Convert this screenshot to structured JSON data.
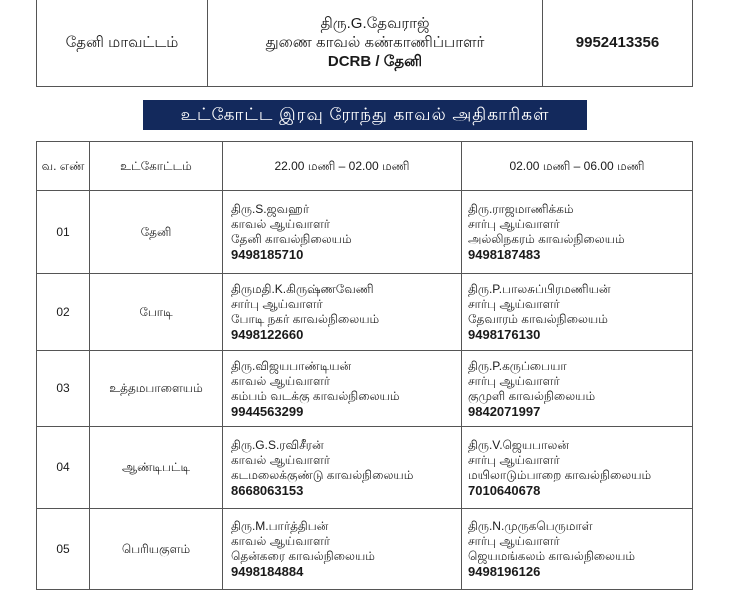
{
  "header": {
    "district": "தேனி மாவட்டம்",
    "officer_name": "திரு.G.தேவராஜ்",
    "officer_rank": "துணை காவல் கண்காணிப்பாளர்",
    "officer_unit": "DCRB / தேனி",
    "officer_phone": "9952413356"
  },
  "banner": "உட்கோட்ட இரவு ரோந்து காவல் அதிகாரிகள்",
  "table": {
    "headers": [
      "வ. எண்",
      "உட்கோட்டம்",
      "22.00 மணி – 02.00 மணி",
      "02.00 மணி – 06.00 மணி"
    ],
    "rows": [
      {
        "no": "01",
        "sub": "தேனி",
        "a": {
          "name": "திரு.S.ஜவஹர்",
          "rank": "காவல் ஆய்வாளர்",
          "station": "தேனி காவல்நிலையம்",
          "phone": "9498185710"
        },
        "b": {
          "name": "திரு.ராஜமாணிக்கம்",
          "rank": "சார்பு ஆய்வாளர்",
          "station": "அல்லிநகரம் காவல்நிலையம்",
          "phone": "9498187483"
        }
      },
      {
        "no": "02",
        "sub": "போடி",
        "a": {
          "name": "திருமதி.K.கிருஷ்ணவேணி",
          "rank": "சார்பு ஆய்வாளர்",
          "station": "போடி நகர் காவல்நிலையம்",
          "phone": "9498122660"
        },
        "b": {
          "name": "திரு.P.பாலசுப்பிரமணியன்",
          "rank": "சார்பு ஆய்வாளர்",
          "station": "தேவாரம் காவல்நிலையம்",
          "phone": "9498176130"
        }
      },
      {
        "no": "03",
        "sub": "உத்தமபாளையம்",
        "a": {
          "name": "திரு.விஜயபாண்டியன்",
          "rank": "காவல் ஆய்வாளர்",
          "station": "கம்பம் வடக்கு காவல்நிலையம்",
          "phone": "9944563299"
        },
        "b": {
          "name": "திரு.P.கருப்பையா",
          "rank": "சார்பு ஆய்வாளர்",
          "station": "குமுளி காவல்நிலையம்",
          "phone": "9842071997"
        }
      },
      {
        "no": "04",
        "sub": "ஆண்டிபட்டி",
        "a": {
          "name": "திரு.G.S.ரவிசீரன்",
          "rank": "காவல் ஆய்வாளர்",
          "station": "கடமலைக்குண்டு காவல்நிலையம்",
          "phone": "8668063153"
        },
        "b": {
          "name": "திரு.V.ஜெயபாலன்",
          "rank": "சார்பு ஆய்வாளர்",
          "station": "மயிலாடும்பாறை காவல்நிலையம்",
          "phone": "7010640678"
        }
      },
      {
        "no": "05",
        "sub": "பெரியகுளம்",
        "a": {
          "name": "திரு.M.பார்த்திபன்",
          "rank": "காவல் ஆய்வாளர்",
          "station": "தென்கரை காவல்நிலையம்",
          "phone": "9498184884"
        },
        "b": {
          "name": "திரு.N.முருகபெருமாள்",
          "rank": "சார்பு ஆய்வாளர்",
          "station": "ஜெயமங்கலம் காவல்நிலையம்",
          "phone": "9498196126"
        }
      }
    ]
  }
}
